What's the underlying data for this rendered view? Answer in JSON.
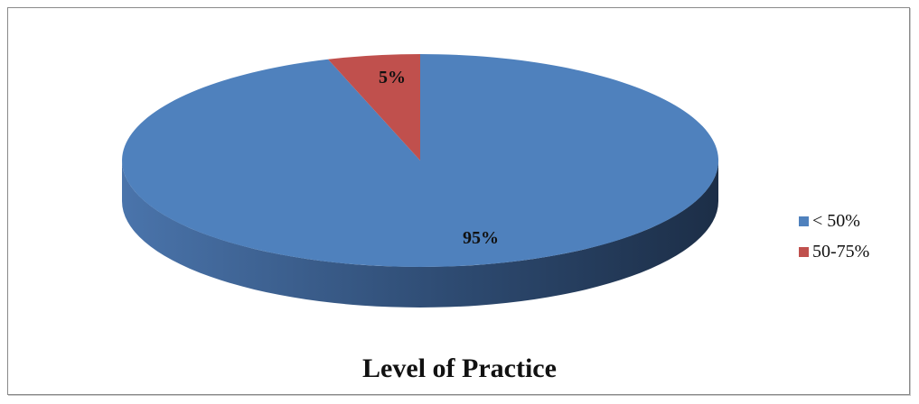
{
  "chart_data": {
    "type": "pie",
    "title": "Level of Practice",
    "categories": [
      "< 50%",
      "50-75%"
    ],
    "values": [
      95,
      5
    ],
    "data_labels": [
      "95%",
      "5%"
    ],
    "colors": [
      "#4f81bd",
      "#c0504d"
    ],
    "legend_position": "right",
    "style": "3d"
  }
}
